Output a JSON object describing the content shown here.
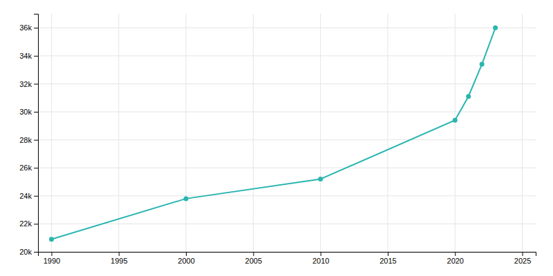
{
  "chart_data": {
    "type": "line",
    "x": [
      1990,
      2000,
      2010,
      2020,
      2021,
      2022,
      2023
    ],
    "values": [
      20900,
      23800,
      25200,
      29400,
      31100,
      33400,
      36000
    ],
    "color": "#2ab5b0",
    "marker": "circle",
    "xlim": [
      1989,
      2026
    ],
    "xticks": [
      1990,
      1995,
      2000,
      2005,
      2010,
      2015,
      2020,
      2025
    ],
    "ylim": [
      20000,
      37000
    ],
    "yticks": [
      {
        "value": 20000,
        "label": "20k"
      },
      {
        "value": 22000,
        "label": "22k"
      },
      {
        "value": 24000,
        "label": "24k"
      },
      {
        "value": 26000,
        "label": "26k"
      },
      {
        "value": 28000,
        "label": "28k"
      },
      {
        "value": 30000,
        "label": "30k"
      },
      {
        "value": 32000,
        "label": "32k"
      },
      {
        "value": 34000,
        "label": "34k"
      },
      {
        "value": 36000,
        "label": "36k"
      }
    ],
    "grid": true
  }
}
